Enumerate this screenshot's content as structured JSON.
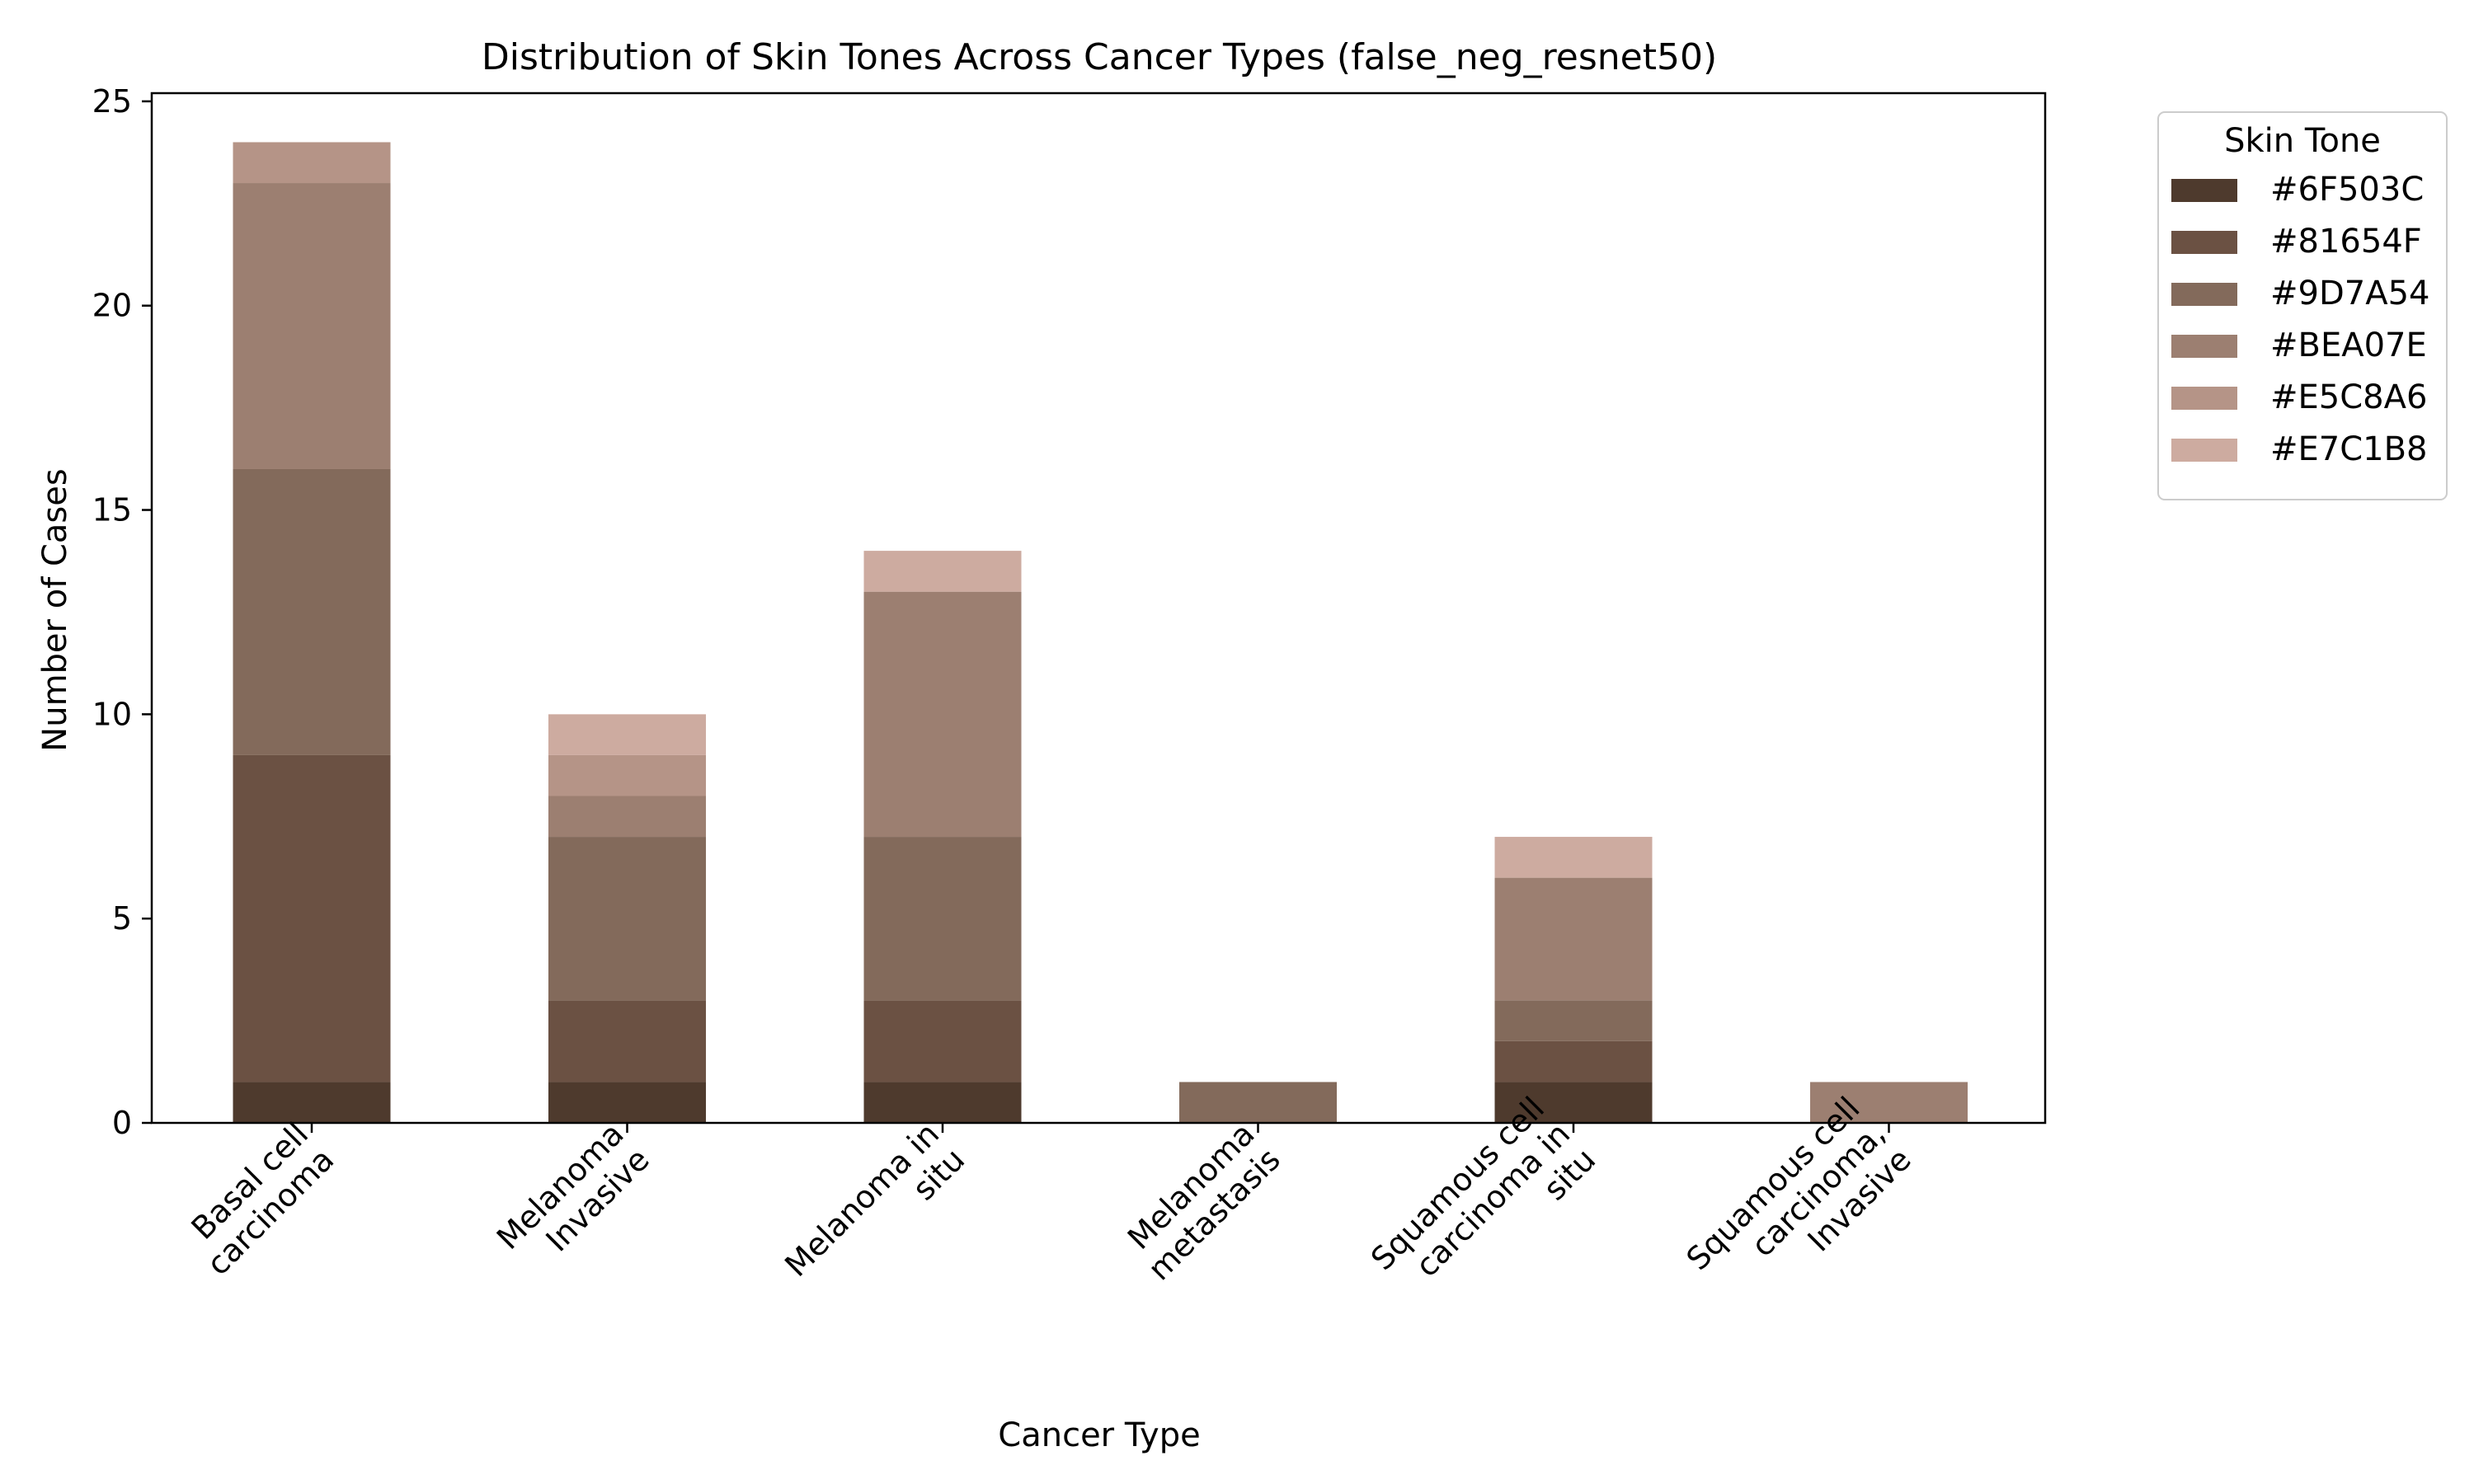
{
  "chart_data": {
    "type": "bar",
    "stacked": true,
    "title": "Distribution of Skin Tones Across Cancer Types (false_neg_resnet50)",
    "xlabel": "Cancer Type",
    "ylabel": "Number of Cases",
    "ylim": [
      0,
      25.2
    ],
    "yticks": [
      0,
      5,
      10,
      15,
      20,
      25
    ],
    "categories": [
      "Basal cell carcinoma",
      "Melanoma Invasive",
      "Melanoma in situ",
      "Melanoma metastasis",
      "Squamous cell carcinoma in situ",
      "Squamous cell carcinoma, Invasive"
    ],
    "category_label_lines": [
      [
        "Basal cell",
        "carcinoma"
      ],
      [
        "Melanoma",
        "Invasive"
      ],
      [
        "Melanoma in",
        "situ"
      ],
      [
        "Melanoma",
        "metastasis"
      ],
      [
        "Squamous cell",
        "carcinoma in",
        "situ"
      ],
      [
        "Squamous cell",
        "carcinoma,",
        "Invasive"
      ]
    ],
    "legend": {
      "title": "Skin Tone",
      "position": "outside-right-top"
    },
    "series": [
      {
        "name": "#6F503C",
        "color": "#4e3a2d",
        "values": [
          1,
          1,
          1,
          0,
          1,
          0
        ]
      },
      {
        "name": "#81654F",
        "color": "#6b5143",
        "values": [
          8,
          2,
          2,
          0,
          1,
          0
        ]
      },
      {
        "name": "#9D7A54",
        "color": "#836a5b",
        "values": [
          7,
          4,
          4,
          1,
          1,
          0
        ]
      },
      {
        "name": "#BEA07E",
        "color": "#9c7f71",
        "values": [
          7,
          1,
          6,
          0,
          3,
          1
        ]
      },
      {
        "name": "#E5C8A6",
        "color": "#b59487",
        "values": [
          1,
          1,
          0,
          0,
          0,
          0
        ]
      },
      {
        "name": "#E7C1B8",
        "color": "#cdaba0",
        "values": [
          0,
          1,
          1,
          0,
          1,
          0
        ]
      }
    ]
  }
}
